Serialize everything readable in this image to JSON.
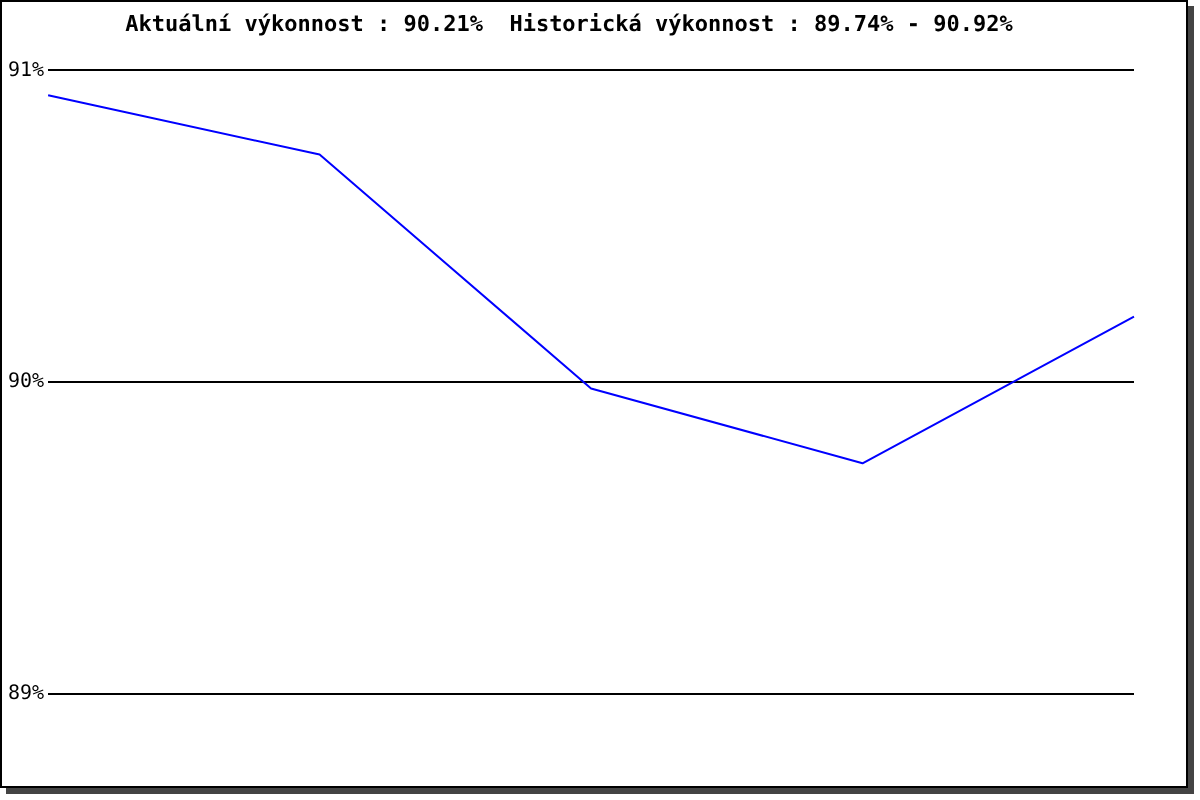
{
  "chart_data": {
    "type": "line",
    "title": "Aktuální výkonnost : 90.21%  Historická výkonnost : 89.74% - 90.92%",
    "categories": [
      null,
      null,
      null,
      null,
      null
    ],
    "series": [
      {
        "color": "#0000ff",
        "values": [
          90.92,
          90.73,
          89.98,
          89.74,
          90.21
        ]
      }
    ],
    "ylim": [
      89,
      91
    ],
    "yticks": [
      {
        "value": 89,
        "label": "89%"
      },
      {
        "value": 90,
        "label": "90%"
      },
      {
        "value": 91,
        "label": "91%"
      }
    ],
    "grid": "y",
    "marker": "none",
    "line_style": "solid",
    "legend": false
  }
}
